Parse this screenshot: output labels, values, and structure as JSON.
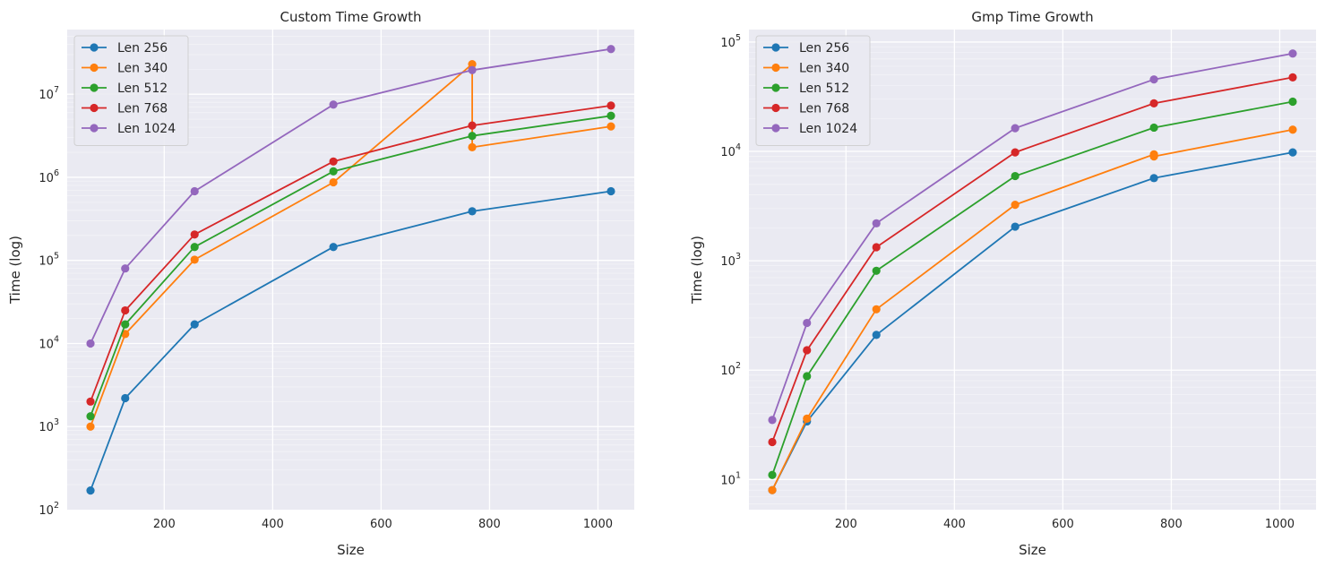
{
  "chart_data": [
    {
      "type": "line",
      "title": "Custom Time Growth",
      "xlabel": "Size",
      "ylabel": "Time (log)",
      "yscale": "log",
      "xlim": [
        21,
        1067
      ],
      "ylim": [
        100,
        60000000
      ],
      "xticks": [
        200,
        400,
        600,
        800,
        1000
      ],
      "yticks": [
        {
          "value": 100,
          "base": "10",
          "exp": "2"
        },
        {
          "value": 1000,
          "base": "10",
          "exp": "3"
        },
        {
          "value": 10000,
          "base": "10",
          "exp": "4"
        },
        {
          "value": 100000,
          "base": "10",
          "exp": "5"
        },
        {
          "value": 1000000,
          "base": "10",
          "exp": "6"
        },
        {
          "value": 10000000,
          "base": "10",
          "exp": "7"
        }
      ],
      "grid": true,
      "legend_position": "top-left",
      "series": [
        {
          "name": "Len 256",
          "color": "#1f77b4",
          "x": [
            64,
            128,
            256,
            512,
            768,
            1024
          ],
          "y": [
            170,
            2200,
            17000,
            145000,
            390000,
            680000
          ]
        },
        {
          "name": "Len 340",
          "color": "#ff7f0e",
          "x": [
            64,
            128,
            256,
            512,
            768,
            768,
            1024
          ],
          "y": [
            1000,
            13000,
            102000,
            870000,
            23000000,
            2300000,
            4100000
          ]
        },
        {
          "name": "Len 512",
          "color": "#2ca02c",
          "x": [
            64,
            128,
            256,
            512,
            768,
            1024
          ],
          "y": [
            1330,
            17000,
            145000,
            1180000,
            3150000,
            5500000
          ]
        },
        {
          "name": "Len 768",
          "color": "#d62728",
          "x": [
            64,
            128,
            256,
            512,
            768,
            1024
          ],
          "y": [
            2000,
            25000,
            205000,
            1550000,
            4200000,
            7300000
          ]
        },
        {
          "name": "Len 1024",
          "color": "#9467bd",
          "x": [
            64,
            128,
            256,
            512,
            768,
            1024
          ],
          "y": [
            10000,
            80000,
            680000,
            7500000,
            19500000,
            35000000
          ]
        }
      ]
    },
    {
      "type": "line",
      "title": "Gmp Time Growth",
      "xlabel": "Size",
      "ylabel": "Time (log)",
      "yscale": "log",
      "xlim": [
        21,
        1067
      ],
      "ylim": [
        5.3,
        130000
      ],
      "xticks": [
        200,
        400,
        600,
        800,
        1000
      ],
      "yticks": [
        {
          "value": 10,
          "base": "10",
          "exp": "1"
        },
        {
          "value": 100,
          "base": "10",
          "exp": "2"
        },
        {
          "value": 1000,
          "base": "10",
          "exp": "3"
        },
        {
          "value": 10000,
          "base": "10",
          "exp": "4"
        },
        {
          "value": 100000,
          "base": "10",
          "exp": "5"
        }
      ],
      "grid": true,
      "legend_position": "top-left",
      "series": [
        {
          "name": "Len 256",
          "color": "#1f77b4",
          "x": [
            64,
            128,
            256,
            512,
            768,
            1024
          ],
          "y": [
            8,
            34,
            210,
            2050,
            5700,
            9800
          ]
        },
        {
          "name": "Len 340",
          "color": "#ff7f0e",
          "x": [
            64,
            128,
            256,
            512,
            768,
            768,
            1024
          ],
          "y": [
            8,
            36,
            360,
            3250,
            9400,
            9000,
            15800
          ]
        },
        {
          "name": "Len 512",
          "color": "#2ca02c",
          "x": [
            64,
            128,
            256,
            512,
            768,
            1024
          ],
          "y": [
            11,
            88,
            810,
            5950,
            16500,
            28500
          ]
        },
        {
          "name": "Len 768",
          "color": "#d62728",
          "x": [
            64,
            128,
            256,
            512,
            768,
            1024
          ],
          "y": [
            22,
            152,
            1330,
            9800,
            27500,
            47500
          ]
        },
        {
          "name": "Len 1024",
          "color": "#9467bd",
          "x": [
            64,
            128,
            256,
            512,
            768,
            1024
          ],
          "y": [
            35,
            270,
            2200,
            16300,
            45500,
            78500
          ]
        }
      ]
    }
  ]
}
